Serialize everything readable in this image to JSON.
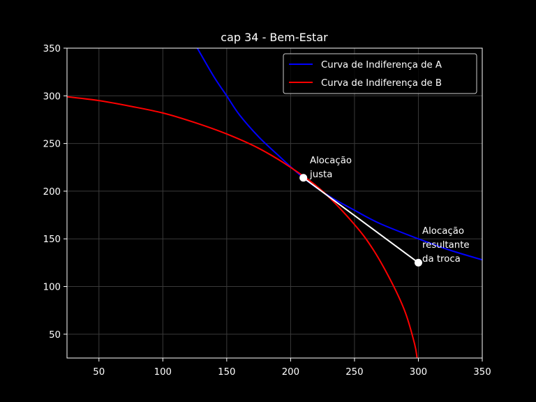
{
  "chart_data": {
    "type": "line",
    "title": "cap 34 - Bem-Estar",
    "xlabel": "",
    "ylabel": "",
    "xlim": [
      25,
      350
    ],
    "ylim": [
      25,
      350
    ],
    "xticks": [
      50,
      100,
      150,
      200,
      250,
      300,
      350
    ],
    "yticks": [
      50,
      100,
      150,
      200,
      250,
      300,
      350
    ],
    "grid": true,
    "legend_position": "top-right",
    "series": [
      {
        "name": "Curva de Indiferença de A",
        "color": "#0000ff",
        "x": [
          127,
          140,
          150,
          160,
          175,
          190,
          210,
          230,
          250,
          270,
          300,
          325,
          350
        ],
        "y": [
          350,
          320,
          300,
          280,
          257,
          238,
          214,
          195,
          180,
          166,
          150,
          138,
          128
        ]
      },
      {
        "name": "Curva de Indiferença de B",
        "color": "#ff0000",
        "x": [
          25,
          50,
          75,
          100,
          125,
          150,
          175,
          200,
          225,
          250,
          265,
          280,
          290,
          297,
          299
        ],
        "y": [
          299,
          295,
          289,
          282,
          272,
          260,
          245,
          225,
          200,
          165,
          138,
          102,
          72,
          40,
          25
        ]
      }
    ],
    "segment": {
      "color": "#ffffff",
      "from": [
        210,
        214
      ],
      "to": [
        300,
        125
      ]
    },
    "points": [
      {
        "name": "alocacao-justa",
        "x": 210,
        "y": 214,
        "label": [
          "Alocação",
          "justa"
        ]
      },
      {
        "name": "alocacao-resultante",
        "x": 300,
        "y": 125,
        "label": [
          "Alocação",
          "resultante",
          "da troca"
        ]
      }
    ]
  }
}
